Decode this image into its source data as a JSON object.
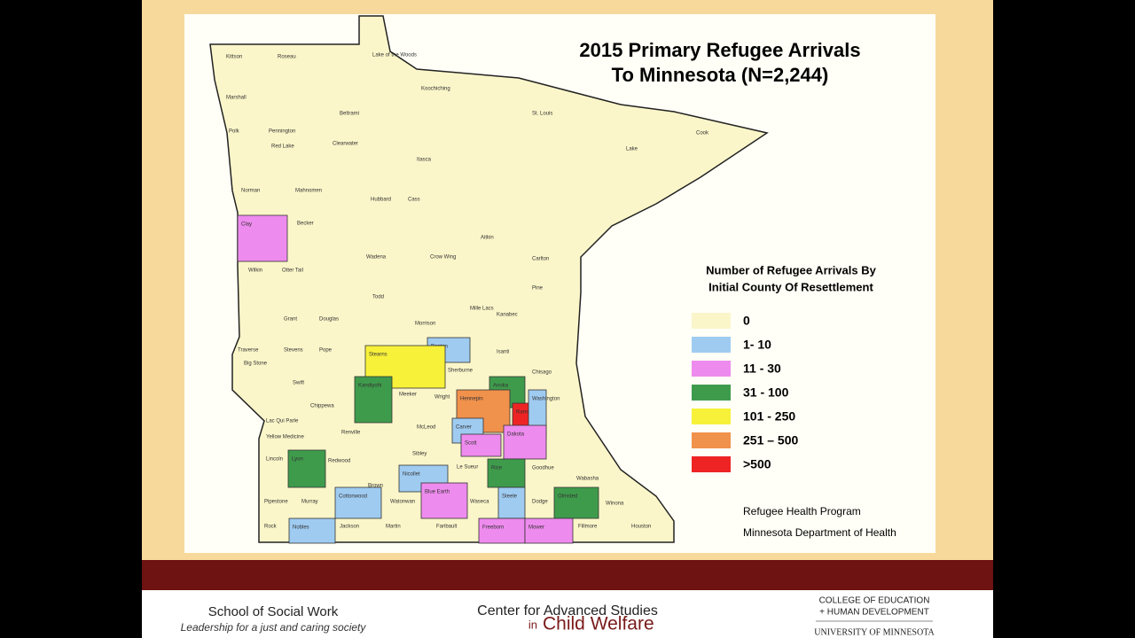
{
  "map": {
    "title": [
      "2015 Primary Refugee Arrivals",
      "To Minnesota  (N=2,244)"
    ],
    "legend_title": [
      "Number of Refugee Arrivals By",
      "Initial County Of Resettlement"
    ],
    "legend": [
      {
        "label": "0",
        "color": "#fbf6c9"
      },
      {
        "label": "1- 10",
        "color": "#9fcbf1"
      },
      {
        "label": "11 - 30",
        "color": "#ee8bee"
      },
      {
        "label": "31 - 100",
        "color": "#3f9b4c"
      },
      {
        "label": "101 - 250",
        "color": "#f7f13a"
      },
      {
        "label": "251 – 500",
        "color": "#f0914c"
      },
      {
        "label": ">500",
        "color": "#ee2424"
      }
    ],
    "counties": [
      {
        "name": "Clay",
        "category": 2
      },
      {
        "name": "Benton",
        "category": 1
      },
      {
        "name": "Stearns",
        "category": 4
      },
      {
        "name": "Kandiyohi",
        "category": 3
      },
      {
        "name": "Lyon",
        "category": 3
      },
      {
        "name": "Anoka",
        "category": 3
      },
      {
        "name": "Hennepin",
        "category": 5
      },
      {
        "name": "Ramsey",
        "category": 6
      },
      {
        "name": "Washington",
        "category": 1
      },
      {
        "name": "Carver",
        "category": 1
      },
      {
        "name": "Scott",
        "category": 2
      },
      {
        "name": "Dakota",
        "category": 2
      },
      {
        "name": "Nicollet",
        "category": 1
      },
      {
        "name": "Blue Earth",
        "category": 2
      },
      {
        "name": "Rice",
        "category": 3
      },
      {
        "name": "Steele",
        "category": 1
      },
      {
        "name": "Olmsted",
        "category": 3
      },
      {
        "name": "Cottonwood",
        "category": 1
      },
      {
        "name": "Nobles",
        "category": 1
      },
      {
        "name": "Freeborn",
        "category": 2
      },
      {
        "name": "Mower",
        "category": 2
      }
    ],
    "other_counties": [
      "Kittson",
      "Roseau",
      "Lake of the Woods",
      "Koochiching",
      "St. Louis",
      "Lake",
      "Cook",
      "Marshall",
      "Beltrami",
      "Polk",
      "Pennington",
      "Red Lake",
      "Clearwater",
      "Itasca",
      "Cass",
      "Hubbard",
      "Norman",
      "Mahnomen",
      "Becker",
      "Wilkin",
      "Otter Tail",
      "Wadena",
      "Crow Wing",
      "Aitkin",
      "Carlton",
      "Pine",
      "Todd",
      "Morrison",
      "Mille Lacs",
      "Kanabec",
      "Grant",
      "Douglas",
      "Traverse",
      "Big Stone",
      "Stevens",
      "Pope",
      "Swift",
      "Chippewa",
      "Meeker",
      "Wright",
      "Sherburne",
      "Isanti",
      "Chisago",
      "Lac Qui Parle",
      "Yellow Medicine",
      "Renville",
      "McLeod",
      "Sibley",
      "Lincoln",
      "Redwood",
      "Brown",
      "Le Sueur",
      "Goodhue",
      "Wabasha",
      "Pipestone",
      "Murray",
      "Watonwan",
      "Waseca",
      "Dodge",
      "Winona",
      "Rock",
      "Jackson",
      "Martin",
      "Faribault",
      "Fillmore",
      "Houston"
    ],
    "source": [
      "Refugee Health Program",
      "Minnesota Department of Health"
    ]
  },
  "footer": {
    "left": {
      "title": "School of Social Work",
      "subtitle": "Leadership for a just and caring society"
    },
    "center": {
      "line1": "Center for Advanced Studies",
      "prefix": "in",
      "line2": "Child Welfare"
    },
    "right": {
      "line1": "COLLEGE OF EDUCATION",
      "line2": "+ HUMAN DEVELOPMENT",
      "line3": "UNIVERSITY OF MINNESOTA"
    }
  }
}
